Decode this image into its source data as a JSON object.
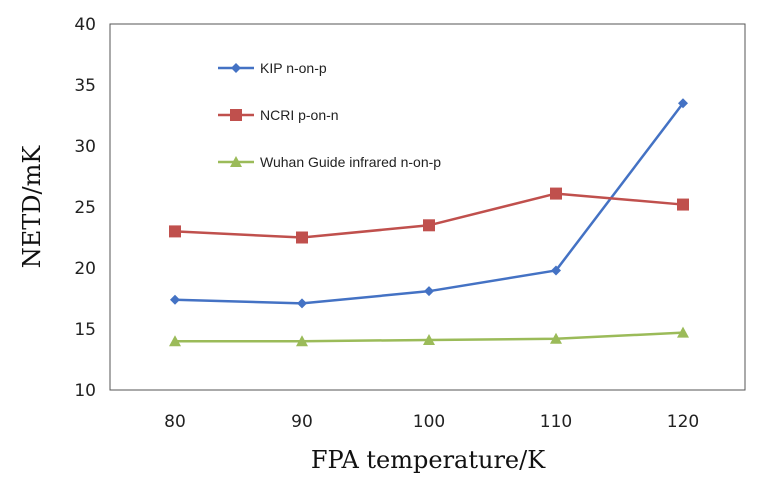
{
  "chart_data": {
    "type": "line",
    "categories": [
      "80",
      "90",
      "100",
      "110",
      "120"
    ],
    "xlabel": "FPA temperature/K",
    "ylabel": "NETD/mK",
    "ylim": [
      10,
      40
    ],
    "yticks": [
      "10",
      "15",
      "20",
      "25",
      "30",
      "35",
      "40"
    ],
    "grid": false,
    "legend_position": "top-left inside plot",
    "series": [
      {
        "name": "KIP n-on-p",
        "color": "#4472C4",
        "marker": "diamond",
        "values": [
          17.4,
          17.1,
          18.1,
          19.8,
          33.5
        ]
      },
      {
        "name": "NCRI p-on-n",
        "color": "#C0504D",
        "marker": "square",
        "values": [
          23.0,
          22.5,
          23.5,
          26.1,
          25.2
        ]
      },
      {
        "name": "Wuhan Guide infrared n-on-p",
        "color": "#9BBB59",
        "marker": "triangle",
        "values": [
          14.0,
          14.0,
          14.1,
          14.2,
          14.7
        ]
      }
    ]
  }
}
